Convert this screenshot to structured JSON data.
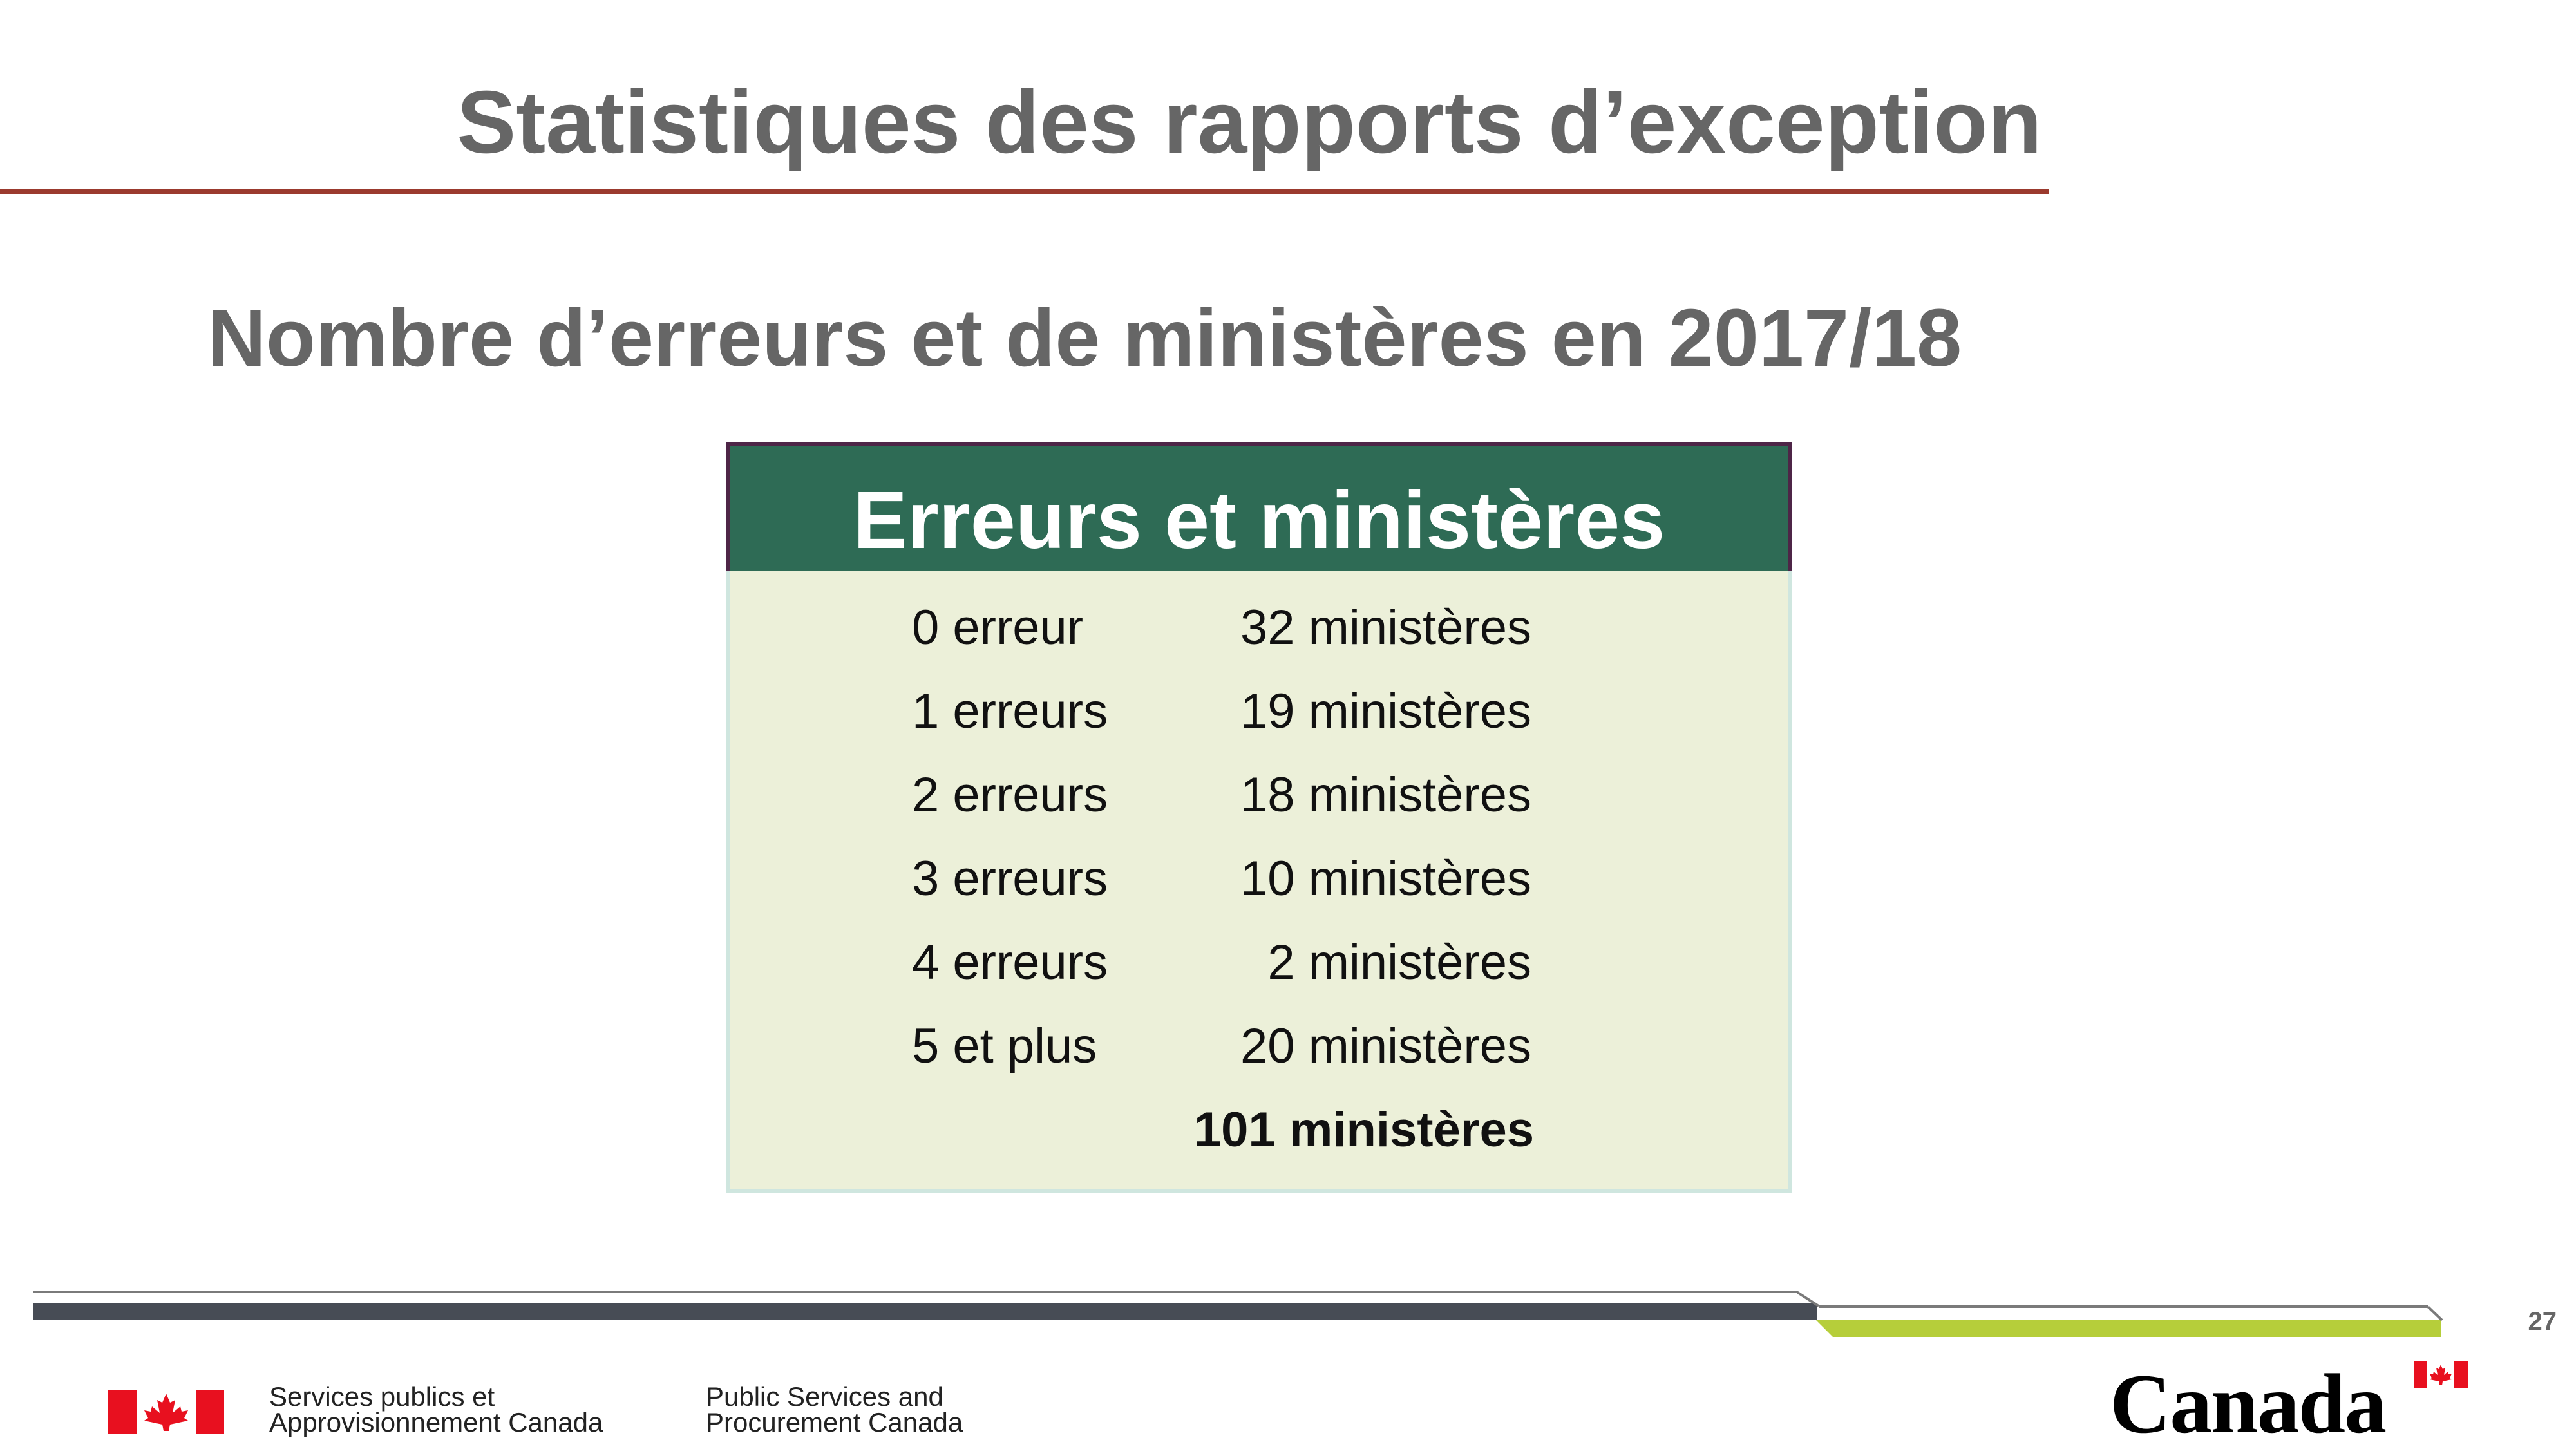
{
  "slide": {
    "title": "Statistiques des rapports d’exception",
    "subtitle": "Nombre d’erreurs et de ministères en 2017/18",
    "page_number": "27"
  },
  "table": {
    "header": "Erreurs et ministères",
    "rows": [
      {
        "errors": "0 erreur",
        "departments": "32 ministères"
      },
      {
        "errors": "1 erreurs",
        "departments": "19 ministères"
      },
      {
        "errors": "2 erreurs",
        "departments": "18 ministères"
      },
      {
        "errors": "3 erreurs",
        "departments": "10 ministères"
      },
      {
        "errors": "4 erreurs",
        "departments": "2 ministères"
      },
      {
        "errors": "5 et plus",
        "departments": "20 ministères"
      }
    ],
    "total": "101 ministères"
  },
  "footer": {
    "dept_fr_line1": "Services publics et",
    "dept_fr_line2": "Approvisionnement Canada",
    "dept_en_line1": "Public Services and",
    "dept_en_line2": "Procurement Canada",
    "wordmark": "Canada"
  },
  "colors": {
    "title_gray": "#666666",
    "title_rule": "#9b3a2e",
    "table_header_bg": "#2e6b55",
    "table_body_bg": "#ecf0d9",
    "footer_dark": "#474c55",
    "footer_green": "#b6ce3a",
    "flag_red": "#e8101f"
  },
  "icons": {
    "flag_signature": "canada-flag-icon",
    "wordmark_flag": "canada-flag-icon"
  }
}
